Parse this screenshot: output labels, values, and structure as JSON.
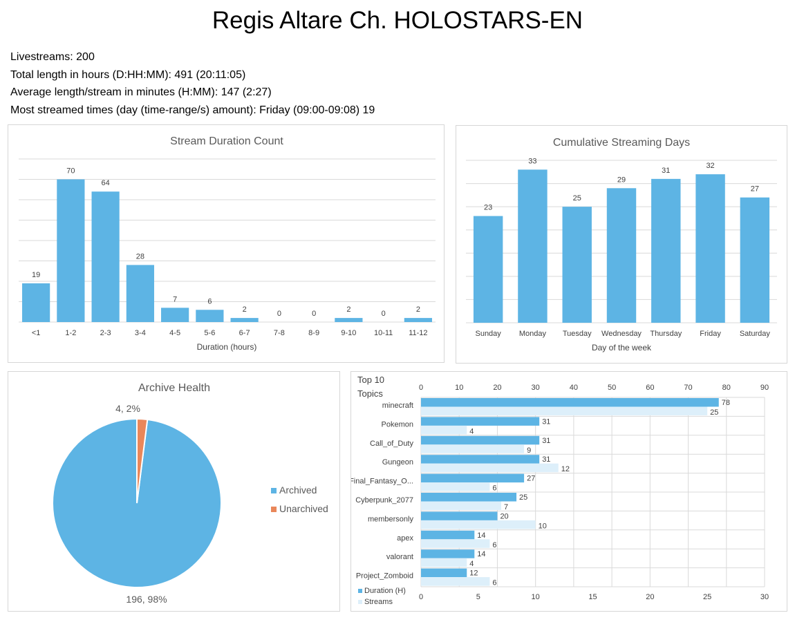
{
  "page": {
    "title": "Regis Altare Ch. HOLOSTARS-EN"
  },
  "stats": [
    "Livestreams: 200",
    "Total length in hours (D:HH:MM): 491 (20:11:05)",
    "Average length/stream in minutes (H:MM): 147 (2:27)",
    "Most streamed times (day (time-range/s) amount): Friday (09:00-09:08) 19"
  ],
  "colors": {
    "primary": "#5db4e4",
    "secondary": "#ddeffa",
    "accent": "#e9875a",
    "grid": "#d9d9d9"
  },
  "chart_data": [
    {
      "id": "duration",
      "type": "bar",
      "title": "Stream Duration Count",
      "xlabel": "Duration (hours)",
      "ylabel": "",
      "categories": [
        "<1",
        "1-2",
        "2-3",
        "3-4",
        "4-5",
        "5-6",
        "6-7",
        "7-8",
        "8-9",
        "9-10",
        "10-11",
        "11-12"
      ],
      "values": [
        19,
        70,
        64,
        28,
        7,
        6,
        2,
        0,
        0,
        2,
        0,
        2
      ],
      "ylim": [
        0,
        80
      ],
      "grid": true
    },
    {
      "id": "days",
      "type": "bar",
      "title": "Cumulative Streaming Days",
      "xlabel": "Day of the week",
      "ylabel": "",
      "categories": [
        "Sunday",
        "Monday",
        "Tuesday",
        "Wednesday",
        "Thursday",
        "Friday",
        "Saturday"
      ],
      "values": [
        23,
        33,
        25,
        29,
        31,
        32,
        27
      ],
      "ylim": [
        0,
        35
      ],
      "grid": true
    },
    {
      "id": "archive",
      "type": "pie",
      "title": "Archive Health",
      "labels": [
        "Archived",
        "Unarchived"
      ],
      "values": [
        196,
        4
      ],
      "percents": [
        98,
        2
      ],
      "data_labels": [
        "196, 98%",
        "4, 2%"
      ],
      "legend": "right"
    },
    {
      "id": "topics",
      "type": "bar",
      "orientation": "horizontal",
      "title": "Top 10 Topics",
      "categories": [
        "minecraft",
        "Pokemon",
        "Call_of_Duty",
        "Gungeon",
        "Final_Fantasy_O...",
        "Cyberpunk_2077",
        "membersonly",
        "apex",
        "valorant",
        "Project_Zomboid"
      ],
      "series": [
        {
          "name": "Duration (H)",
          "values": [
            78,
            31,
            31,
            31,
            27,
            25,
            20,
            14,
            14,
            12
          ],
          "axis": "top"
        },
        {
          "name": "Streams",
          "values": [
            25,
            4,
            9,
            12,
            6,
            7,
            10,
            6,
            4,
            6
          ],
          "axis": "bottom"
        }
      ],
      "top_axis": {
        "range": [
          0,
          90
        ],
        "ticks": [
          0,
          10,
          20,
          30,
          40,
          50,
          60,
          70,
          80,
          90
        ]
      },
      "bottom_axis": {
        "range": [
          0,
          30
        ],
        "ticks": [
          0,
          5,
          10,
          15,
          20,
          25,
          30
        ]
      },
      "legend": "bottom-left",
      "grid": true
    }
  ]
}
